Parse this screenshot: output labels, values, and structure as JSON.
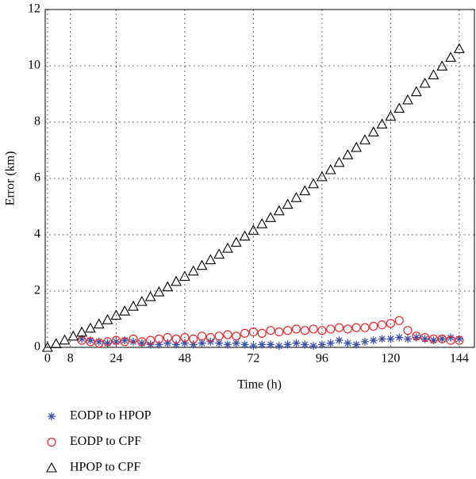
{
  "chart_data": {
    "type": "scatter",
    "xlabel": "Time (h)",
    "ylabel": "Error (km)",
    "xlim": [
      -0.8,
      149.3
    ],
    "xticks": [
      0,
      8,
      24,
      48,
      72,
      96,
      120,
      144
    ],
    "ylim": [
      0,
      12
    ],
    "yticks": [
      0,
      2,
      4,
      6,
      8,
      10,
      12
    ],
    "grid": true,
    "series": [
      {
        "name": "EODP to HPOP",
        "color": "#3a4fa8",
        "marker": "star",
        "x": [
          12,
          15,
          18,
          21,
          24,
          27,
          30,
          33,
          36,
          39,
          42,
          45,
          48,
          51,
          54,
          57,
          60,
          63,
          66,
          69,
          72,
          75,
          78,
          81,
          84,
          87,
          90,
          93,
          96,
          99,
          102,
          105,
          108,
          111,
          114,
          117,
          120,
          123,
          126,
          129,
          132,
          135,
          138,
          141,
          144
        ],
        "values": [
          0.3,
          0.25,
          0.2,
          0.15,
          0.2,
          0.25,
          0.2,
          0.15,
          0.1,
          0.1,
          0.15,
          0.1,
          0.15,
          0.1,
          0.15,
          0.2,
          0.15,
          0.1,
          0.15,
          0.1,
          0.05,
          0.1,
          0.1,
          0.05,
          0.1,
          0.15,
          0.1,
          0.05,
          0.1,
          0.15,
          0.25,
          0.15,
          0.1,
          0.2,
          0.25,
          0.3,
          0.3,
          0.35,
          0.3,
          0.35,
          0.3,
          0.25,
          0.3,
          0.35,
          0.3
        ]
      },
      {
        "name": "EODP to CPF",
        "color": "#e8262b",
        "marker": "circle",
        "x": [
          12,
          15,
          18,
          21,
          24,
          27,
          30,
          33,
          36,
          39,
          42,
          45,
          48,
          51,
          54,
          57,
          60,
          63,
          66,
          69,
          72,
          75,
          78,
          81,
          84,
          87,
          90,
          93,
          96,
          99,
          102,
          105,
          108,
          111,
          114,
          117,
          120,
          123,
          126,
          129,
          132,
          135,
          138,
          141,
          144
        ],
        "values": [
          0.25,
          0.2,
          0.15,
          0.2,
          0.25,
          0.2,
          0.3,
          0.2,
          0.25,
          0.3,
          0.35,
          0.3,
          0.35,
          0.3,
          0.4,
          0.35,
          0.4,
          0.45,
          0.4,
          0.5,
          0.55,
          0.5,
          0.6,
          0.55,
          0.6,
          0.65,
          0.6,
          0.65,
          0.6,
          0.65,
          0.7,
          0.65,
          0.7,
          0.7,
          0.75,
          0.8,
          0.85,
          0.95,
          0.6,
          0.4,
          0.35,
          0.3,
          0.3,
          0.25,
          0.25
        ]
      },
      {
        "name": "HPOP to CPF",
        "color": "#000000",
        "marker": "triangle",
        "x": [
          0,
          3,
          6,
          9,
          12,
          15,
          18,
          21,
          24,
          27,
          30,
          33,
          36,
          39,
          42,
          45,
          48,
          51,
          54,
          57,
          60,
          63,
          66,
          69,
          72,
          75,
          78,
          81,
          84,
          87,
          90,
          93,
          96,
          99,
          102,
          105,
          108,
          111,
          114,
          117,
          120,
          123,
          126,
          129,
          132,
          135,
          138,
          141,
          144
        ],
        "values": [
          0,
          0.13,
          0.26,
          0.4,
          0.54,
          0.68,
          0.83,
          0.98,
          1.14,
          1.29,
          1.46,
          1.63,
          1.8,
          1.97,
          2.15,
          2.34,
          2.52,
          2.71,
          2.91,
          3.11,
          3.31,
          3.52,
          3.73,
          3.95,
          4.16,
          4.39,
          4.61,
          4.85,
          5.08,
          5.32,
          5.56,
          5.81,
          6.06,
          6.31,
          6.57,
          6.84,
          7.1,
          7.37,
          7.65,
          7.93,
          8.21,
          8.49,
          8.79,
          9.08,
          9.38,
          9.68,
          9.99,
          10.3,
          10.61
        ]
      }
    ]
  }
}
